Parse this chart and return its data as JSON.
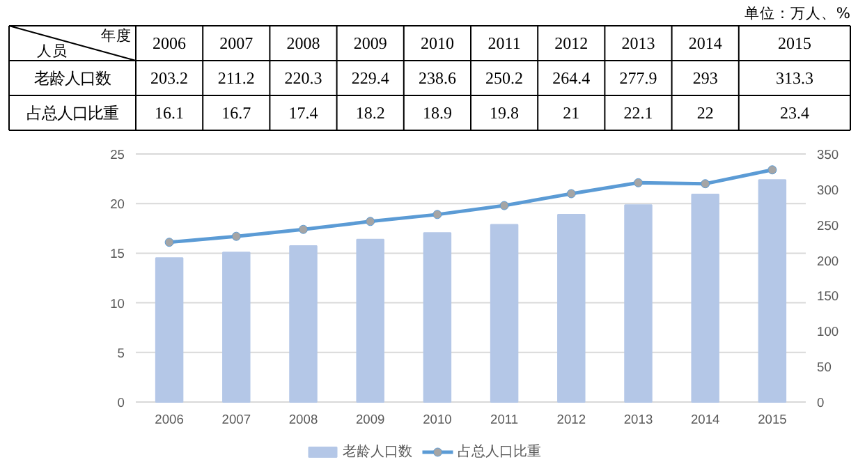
{
  "chart_data": {
    "type": "bar",
    "categories": [
      "2006",
      "2007",
      "2008",
      "2009",
      "2010",
      "2011",
      "2012",
      "2013",
      "2014",
      "2015"
    ],
    "series": [
      {
        "name": "老龄人口数",
        "axis": "y2",
        "color": "#b4c7e7",
        "values": [
          203.2,
          211.2,
          220.3,
          229.4,
          238.6,
          250.2,
          264.4,
          277.9,
          293,
          313.3
        ]
      },
      {
        "name": "占总人口比重",
        "type": "line",
        "color": "#5b9bd5",
        "marker": "circle",
        "values": [
          16.1,
          16.7,
          17.4,
          18.2,
          18.9,
          19.8,
          21,
          22.1,
          22,
          23.4
        ]
      }
    ],
    "ylim": [
      0,
      25
    ],
    "yticks": [
      0,
      5,
      10,
      15,
      20,
      25
    ],
    "y2lim": [
      0,
      350
    ],
    "y2ticks": [
      0,
      50,
      100,
      150,
      200,
      250,
      300,
      350
    ],
    "grid": "y",
    "legend": "bottom",
    "data_labels": true,
    "annotations": [
      "单位：万人、%",
      "年度",
      "人员"
    ]
  }
}
